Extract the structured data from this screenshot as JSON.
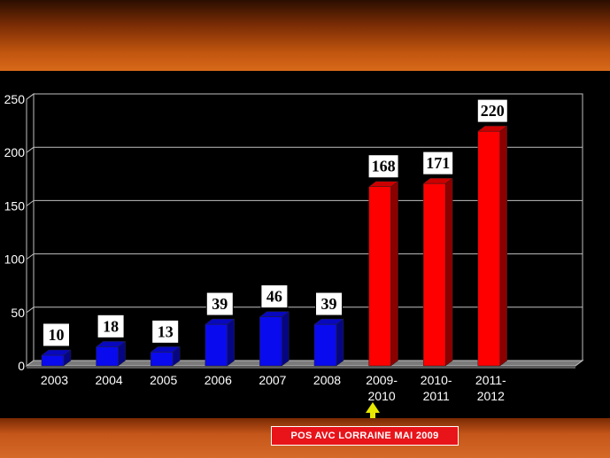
{
  "chart_data": {
    "type": "bar",
    "categories": [
      "2003",
      "2004",
      "2005",
      "2006",
      "2007",
      "2008",
      "2009-\n2010",
      "2010-\n2011",
      "2011-\n2012"
    ],
    "values": [
      10,
      18,
      13,
      39,
      46,
      39,
      168,
      171,
      220
    ],
    "data_labels": [
      "10",
      "18",
      "13",
      "39",
      "46",
      "39",
      "168",
      "171",
      "220"
    ],
    "bar_colors": [
      "#0a0aee",
      "#0a0aee",
      "#0a0aee",
      "#0a0aee",
      "#0a0aee",
      "#0a0aee",
      "#ff0000",
      "#ff0000",
      "#ff0000"
    ],
    "ylim": [
      0,
      250
    ],
    "yticks": [
      "0",
      "50",
      "100",
      "150",
      "200",
      "250"
    ],
    "grid": true,
    "title": "",
    "xlabel": "",
    "ylabel": ""
  },
  "annotation": {
    "text": "POS AVC LORRAINE MAI 2009",
    "arrow_color": "#e8e800",
    "box_color": "#e8141a"
  }
}
